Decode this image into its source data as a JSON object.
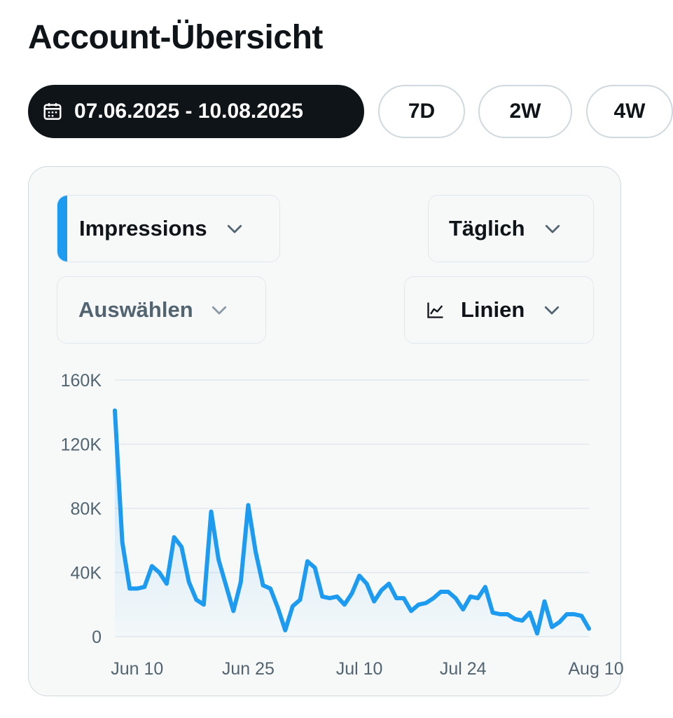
{
  "page": {
    "title": "Account-Übersicht"
  },
  "date_range": {
    "selected_label": "07.06.2025 - 10.08.2025",
    "presets": [
      "7D",
      "2W",
      "4W"
    ]
  },
  "controls": {
    "metric_label": "Impressions",
    "interval_label": "Täglich",
    "compare_placeholder": "Auswählen",
    "chart_type_label": "Linien"
  },
  "colors": {
    "accent": "#1d9bf0",
    "text": "#0f1419",
    "muted": "#536471"
  },
  "icons": {
    "date": "calendar-icon",
    "dropdown": "chevron-down-icon",
    "chart_type": "line-chart-icon"
  },
  "chart_data": {
    "type": "area",
    "ylabel": "",
    "xlabel": "",
    "ylim": [
      0,
      160000
    ],
    "yticks": [
      0,
      40000,
      80000,
      120000,
      160000
    ],
    "ytick_labels": [
      "0",
      "40K",
      "80K",
      "120K",
      "160K"
    ],
    "xtick_labels": [
      "Jun 10",
      "Jun 25",
      "Jul 10",
      "Jul 24",
      "Aug 10"
    ],
    "xtick_dates": [
      "2025-06-10",
      "2025-06-25",
      "2025-07-10",
      "2025-07-24",
      "2025-08-10"
    ],
    "grid": true,
    "series": [
      {
        "color": "#1d9bf0",
        "x": [
          "2025-06-07",
          "2025-06-08",
          "2025-06-09",
          "2025-06-10",
          "2025-06-11",
          "2025-06-12",
          "2025-06-13",
          "2025-06-14",
          "2025-06-15",
          "2025-06-16",
          "2025-06-17",
          "2025-06-18",
          "2025-06-19",
          "2025-06-20",
          "2025-06-21",
          "2025-06-22",
          "2025-06-23",
          "2025-06-24",
          "2025-06-25",
          "2025-06-26",
          "2025-06-27",
          "2025-06-28",
          "2025-06-29",
          "2025-06-30",
          "2025-07-01",
          "2025-07-02",
          "2025-07-03",
          "2025-07-04",
          "2025-07-05",
          "2025-07-06",
          "2025-07-07",
          "2025-07-08",
          "2025-07-09",
          "2025-07-10",
          "2025-07-11",
          "2025-07-12",
          "2025-07-13",
          "2025-07-14",
          "2025-07-15",
          "2025-07-16",
          "2025-07-17",
          "2025-07-18",
          "2025-07-19",
          "2025-07-20",
          "2025-07-21",
          "2025-07-22",
          "2025-07-23",
          "2025-07-24",
          "2025-07-25",
          "2025-07-26",
          "2025-07-27",
          "2025-07-28",
          "2025-07-29",
          "2025-07-30",
          "2025-07-31",
          "2025-08-01",
          "2025-08-02",
          "2025-08-03",
          "2025-08-04",
          "2025-08-05",
          "2025-08-06",
          "2025-08-07",
          "2025-08-08",
          "2025-08-09",
          "2025-08-10"
        ],
        "values": [
          141000,
          59000,
          30000,
          30000,
          31000,
          44000,
          40000,
          33000,
          62000,
          56000,
          34000,
          23000,
          20000,
          78000,
          48000,
          32000,
          16000,
          34000,
          82000,
          53000,
          32000,
          30000,
          18000,
          4000,
          19000,
          23000,
          47000,
          43000,
          25000,
          24000,
          25000,
          20000,
          27000,
          38000,
          33000,
          22000,
          29000,
          33000,
          24000,
          24000,
          16000,
          20000,
          21000,
          24000,
          28000,
          28000,
          24000,
          17000,
          25000,
          24000,
          31000,
          15000,
          14000,
          14000,
          11000,
          10000,
          15000,
          2000,
          22000,
          6000,
          9000,
          14000,
          14000,
          13000,
          5000
        ]
      }
    ]
  }
}
